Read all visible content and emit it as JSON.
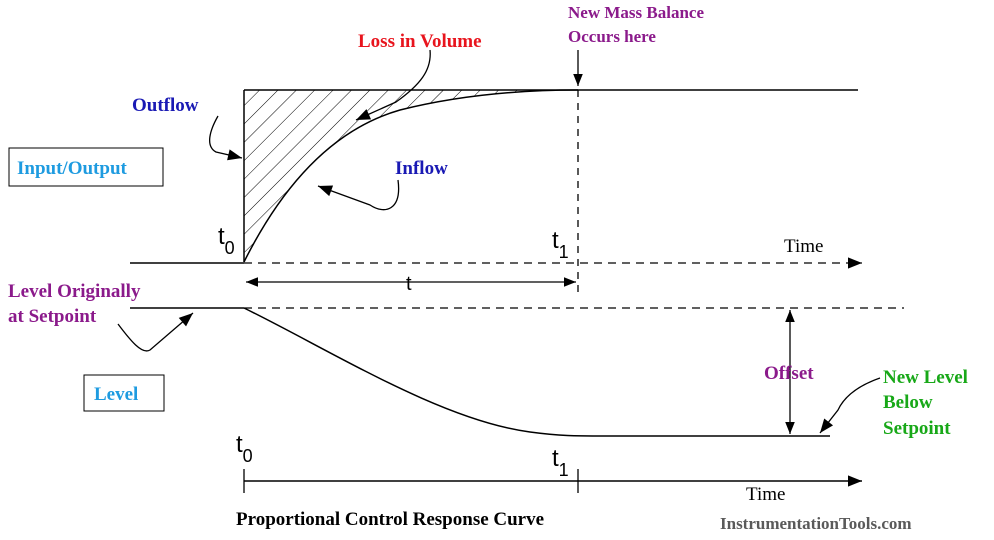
{
  "colors": {
    "ink": "#000000",
    "red": "#e8141d",
    "purple": "#8b1a8b",
    "blue": "#1a1ab4",
    "cyan": "#1e9be0",
    "green": "#18a818",
    "gray": "#5a5a5a"
  },
  "labels": {
    "loss_in_volume": "Loss in Volume",
    "new_mass_balance_line1": "New Mass Balance",
    "new_mass_balance_line2": "Occurs here",
    "outflow": "Outflow",
    "inflow": "Inflow",
    "input_output": "Input/Output",
    "t0_top": "t",
    "t0_top_sub": "0",
    "t1_top": "t",
    "t1_top_sub": "1",
    "time_top": "Time",
    "t_interval": "t",
    "level_originally_line1": "Level Originally",
    "level_originally_line2": "at Setpoint",
    "level": "Level",
    "offset": "Offset",
    "new_level_line1": "New Level",
    "new_level_line2": "Below",
    "new_level_line3": "Setpoint",
    "t0_bottom": "t",
    "t0_bottom_sub": "0",
    "t1_bottom": "t",
    "t1_bottom_sub": "1",
    "time_bottom": "Time",
    "caption": "Proportional Control Response Curve",
    "watermark": "InstrumentationTools.com"
  }
}
